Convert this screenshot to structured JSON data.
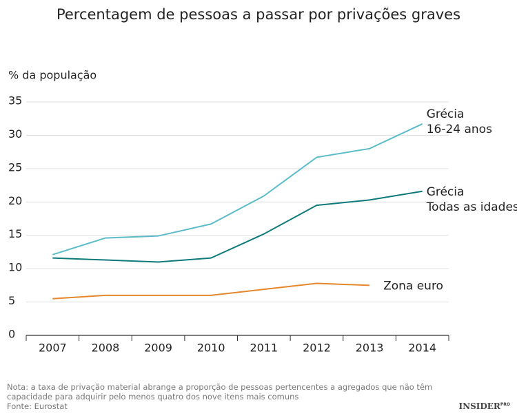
{
  "chart_data": {
    "type": "line",
    "title": "Percentagem de pessoas a passar por privações graves",
    "y_label": "% da população",
    "categories": [
      "2007",
      "2008",
      "2009",
      "2010",
      "2011",
      "2012",
      "2013",
      "2014"
    ],
    "series": [
      {
        "name": "Grécia 16-24 anos",
        "color": "#5bbcc8",
        "values": [
          12.1,
          14.6,
          14.9,
          16.7,
          20.9,
          26.7,
          28.0,
          31.7
        ]
      },
      {
        "name": "Grécia Todas as idades",
        "color": "#0f7a7a",
        "values": [
          11.6,
          11.3,
          11.0,
          11.6,
          15.2,
          19.5,
          20.3,
          21.6
        ]
      },
      {
        "name": "Zona euro",
        "color": "#e5862a",
        "values": [
          5.5,
          6.0,
          6.0,
          6.0,
          6.9,
          7.8,
          7.5,
          null
        ]
      }
    ],
    "ylim": [
      0,
      35
    ],
    "yticks": [
      0,
      5,
      10,
      15,
      20,
      25,
      30,
      35
    ],
    "grid": true,
    "note": "Nota: a taxa de privação material abrange a proporção de pessoas pertencentes a agregados que não têm capacidade para adquirir pelo menos quatro dos nove itens mais comuns",
    "source": "Fonte: Eurostat",
    "brand": "INSIDER",
    "brand_suffix": "PRO"
  }
}
